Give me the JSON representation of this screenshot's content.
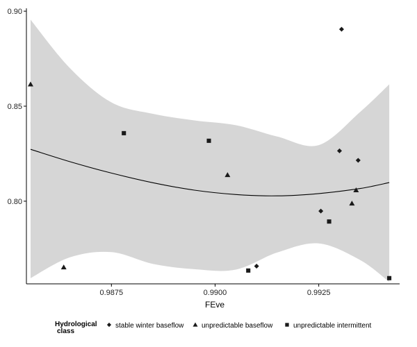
{
  "chart_data": {
    "type": "scatter",
    "title": "",
    "xlabel": "FEve",
    "ylabel": "",
    "xlim": [
      0.98545,
      0.99445
    ],
    "ylim": [
      0.7565,
      0.9015
    ],
    "x_ticks": [
      0.9875,
      0.99,
      0.9925
    ],
    "x_tick_labels": [
      "0.9875",
      "0.9900",
      "0.9925"
    ],
    "y_ticks": [
      0.8,
      0.85,
      0.9
    ],
    "y_tick_labels": [
      "0.80",
      "0.85",
      "0.90"
    ],
    "grid": false,
    "legend": {
      "title_line1": "Hydrological",
      "title_line2": "class",
      "placement": "bottom"
    },
    "colors": {
      "ribbon": "#d6d6d6",
      "line": "#000000",
      "points": "#1a1a1a",
      "axis": "#000000"
    },
    "series": [
      {
        "name": "stable winter baseflow",
        "shape": "diamond",
        "points": [
          {
            "x": 0.99305,
            "y": 0.8905
          },
          {
            "x": 0.993,
            "y": 0.8265
          },
          {
            "x": 0.99345,
            "y": 0.8215
          },
          {
            "x": 0.99255,
            "y": 0.7948
          },
          {
            "x": 0.991,
            "y": 0.7658
          }
        ]
      },
      {
        "name": "unpredictable baseflow",
        "shape": "triangle",
        "points": [
          {
            "x": 0.98555,
            "y": 0.8615
          },
          {
            "x": 0.98635,
            "y": 0.7652
          },
          {
            "x": 0.9903,
            "y": 0.8138
          },
          {
            "x": 0.9934,
            "y": 0.8058
          },
          {
            "x": 0.9933,
            "y": 0.7988
          }
        ]
      },
      {
        "name": "unpredictable intermittent",
        "shape": "square",
        "points": [
          {
            "x": 0.9878,
            "y": 0.8358
          },
          {
            "x": 0.98985,
            "y": 0.8318
          },
          {
            "x": 0.9908,
            "y": 0.7635
          },
          {
            "x": 0.99275,
            "y": 0.7893
          },
          {
            "x": 0.9942,
            "y": 0.7595
          }
        ]
      }
    ],
    "fit": {
      "x": [
        0.98555,
        0.9865,
        0.9875,
        0.9885,
        0.9895,
        0.9905,
        0.9915,
        0.9925,
        0.9935,
        0.9942
      ],
      "y": [
        0.8273,
        0.8208,
        0.8148,
        0.8097,
        0.8058,
        0.8035,
        0.8028,
        0.804,
        0.8067,
        0.8098
      ],
      "lower": [
        0.7595,
        0.7705,
        0.7732,
        0.767,
        0.7642,
        0.764,
        0.773,
        0.7778,
        0.769,
        0.7575
      ],
      "upper": [
        0.8955,
        0.87,
        0.852,
        0.846,
        0.8425,
        0.84,
        0.834,
        0.8295,
        0.847,
        0.8615
      ]
    }
  }
}
